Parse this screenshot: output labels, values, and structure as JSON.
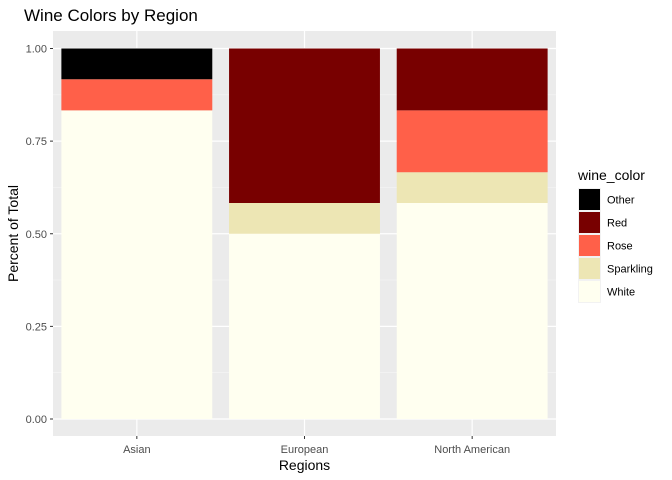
{
  "chart_data": {
    "type": "bar",
    "stacked": true,
    "title": "Wine Colors by Region",
    "xlabel": "Regions",
    "ylabel": "Percent of Total",
    "ylim": [
      0,
      1
    ],
    "yticks": [
      "0.00",
      "0.25",
      "0.50",
      "0.75",
      "1.00"
    ],
    "categories": [
      "Asian",
      "European",
      "North American"
    ],
    "legend_title": "wine_color",
    "legend_position": "right",
    "grid": true,
    "series": [
      {
        "name": "White",
        "color": "#FFFFF0",
        "values": [
          0.833,
          0.5,
          0.583
        ]
      },
      {
        "name": "Sparkling",
        "color": "#EDE6B4",
        "values": [
          0.0,
          0.083,
          0.083
        ]
      },
      {
        "name": "Rose",
        "color": "#FF6049",
        "values": [
          0.084,
          0.0,
          0.167
        ]
      },
      {
        "name": "Red",
        "color": "#780000",
        "values": [
          0.0,
          0.417,
          0.167
        ]
      },
      {
        "name": "Other",
        "color": "#000000",
        "values": [
          0.083,
          0.0,
          0.0
        ]
      }
    ],
    "legend_order": [
      "Other",
      "Red",
      "Rose",
      "Sparkling",
      "White"
    ]
  }
}
